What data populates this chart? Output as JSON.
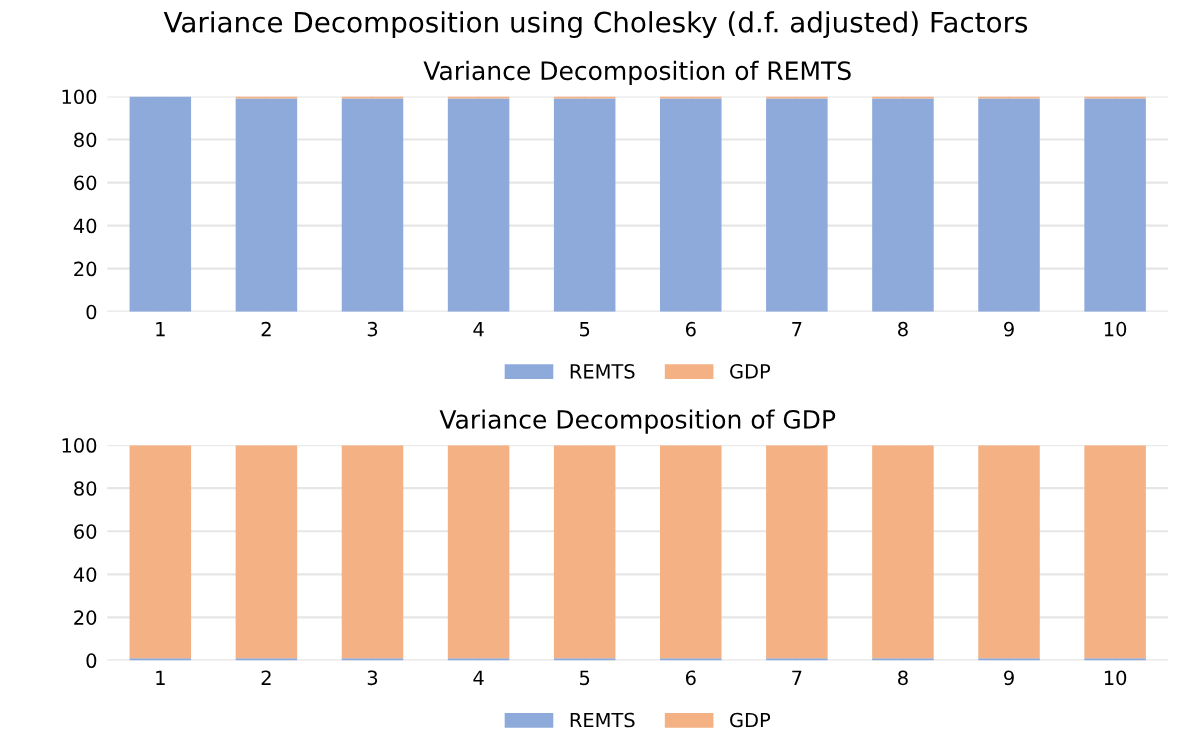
{
  "chart_data": [
    {
      "type": "bar",
      "title": "Variance Decomposition using Cholesky (d.f. adjusted) Factors",
      "subtitle": "Variance Decomposition of REMTS",
      "stacked": true,
      "categories": [
        "1",
        "2",
        "3",
        "4",
        "5",
        "6",
        "7",
        "8",
        "9",
        "10"
      ],
      "series": [
        {
          "name": "REMTS",
          "color": "#8eaadb",
          "values": [
            100,
            99,
            99,
            99,
            99,
            99,
            99,
            99,
            99,
            99
          ]
        },
        {
          "name": "GDP",
          "color": "#f4b183",
          "values": [
            0,
            1,
            1,
            1,
            1,
            1,
            1,
            1,
            1,
            1
          ]
        }
      ],
      "ylim": [
        0,
        100
      ],
      "yticks": [
        0,
        20,
        40,
        60,
        80,
        100
      ],
      "grid": true,
      "legend": "bottom"
    },
    {
      "type": "bar",
      "title": "Variance Decomposition of GDP",
      "stacked": true,
      "categories": [
        "1",
        "2",
        "3",
        "4",
        "5",
        "6",
        "7",
        "8",
        "9",
        "10"
      ],
      "series": [
        {
          "name": "REMTS",
          "color": "#8eaadb",
          "values": [
            1,
            1,
            1,
            1,
            1,
            1,
            1,
            1,
            1,
            1
          ]
        },
        {
          "name": "GDP",
          "color": "#f4b183",
          "values": [
            99,
            99,
            99,
            99,
            99,
            99,
            99,
            99,
            99,
            99
          ]
        }
      ],
      "ylim": [
        0,
        100
      ],
      "yticks": [
        0,
        20,
        40,
        60,
        80,
        100
      ],
      "grid": true,
      "legend": "bottom"
    }
  ]
}
